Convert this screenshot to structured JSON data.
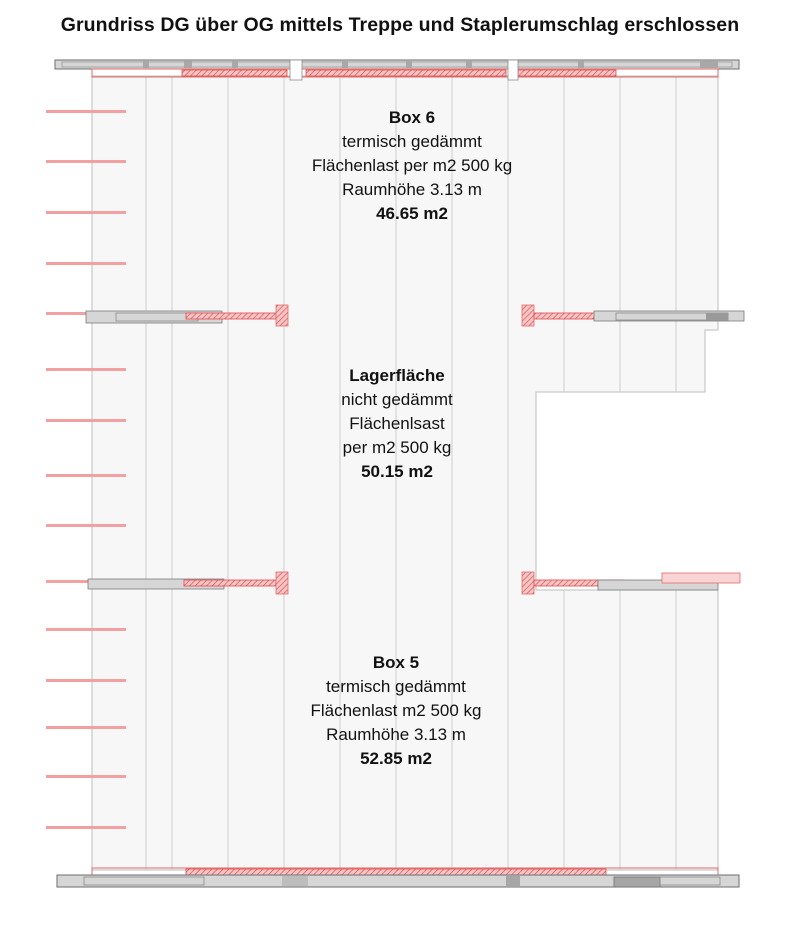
{
  "title": "Grundriss DG über OG mittels Treppe und Staplerumschlag erschlossen",
  "colors": {
    "floor_fill": "#f7f7f7",
    "grid_line": "#c8c8c8",
    "wall_hatch": "#e04848",
    "wall_fill": "#f6c6c6",
    "beam_fill": "#d2d2d2",
    "beam_stroke": "#6e6e6e"
  },
  "rooms": [
    {
      "id": "box-6",
      "name": "Box 6",
      "lines": [
        "termisch gedämmt",
        "Flächenlast per m2 500 kg",
        "Raumhöhe 3.13 m"
      ],
      "area": "46.65 m2"
    },
    {
      "id": "lagerflaeche",
      "name": "Lagerfläche",
      "lines": [
        "nicht gedämmt",
        "Flächenlsast",
        "per m2 500 kg"
      ],
      "area": "50.15 m2"
    },
    {
      "id": "box-5",
      "name": "Box 5",
      "lines": [
        "termisch gedämmt",
        "Flächenlast m2 500 kg",
        "Raumhöhe 3.13 m"
      ],
      "area": "52.85 m2"
    }
  ]
}
